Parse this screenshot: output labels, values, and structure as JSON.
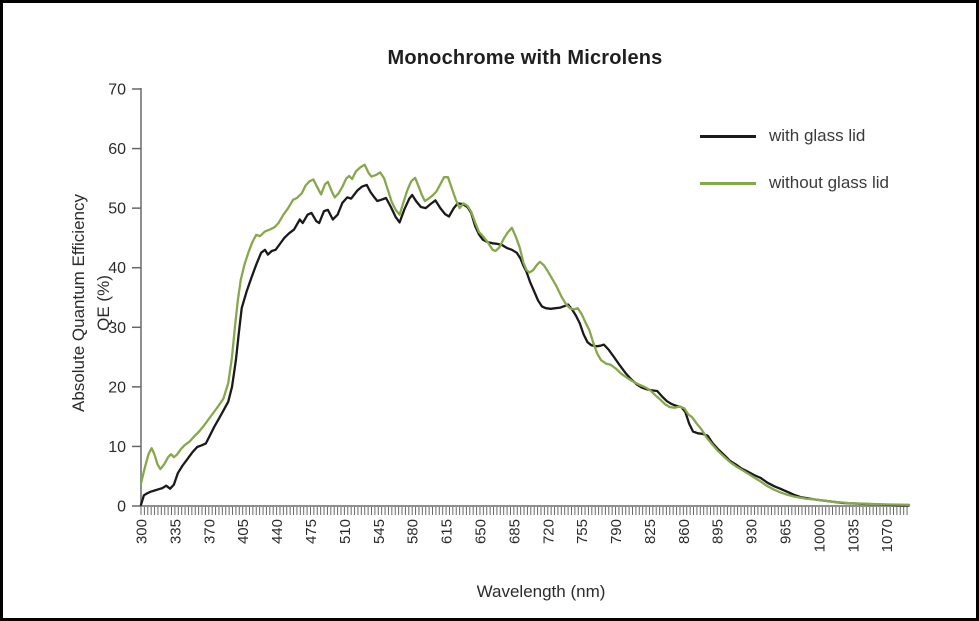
{
  "chart_data": {
    "type": "line",
    "title": "Monochrome with Microlens",
    "xlabel": "Wavelength (nm)",
    "ylabel_line1": "Absolute Quantum Efficiency",
    "ylabel_line2": "QE (%)",
    "xlim": [
      300,
      1093
    ],
    "ylim": [
      0,
      70
    ],
    "grid": false,
    "legend_position": "top-right",
    "axis_color": "#8f8f8f",
    "tick_color": "#666666",
    "x_ticks": [
      300,
      335,
      370,
      405,
      440,
      475,
      510,
      545,
      580,
      615,
      650,
      685,
      720,
      755,
      790,
      825,
      860,
      895,
      930,
      965,
      1000,
      1035,
      1070
    ],
    "y_ticks": [
      0,
      10,
      20,
      30,
      40,
      50,
      60,
      70
    ],
    "series": [
      {
        "name": "with glass lid",
        "color": "#1a1a1a",
        "points": [
          [
            300,
            0.2
          ],
          [
            303,
            1.8
          ],
          [
            306,
            2.1
          ],
          [
            310,
            2.4
          ],
          [
            314,
            2.6
          ],
          [
            318,
            2.8
          ],
          [
            322,
            3.0
          ],
          [
            326,
            3.4
          ],
          [
            330,
            2.9
          ],
          [
            334,
            3.6
          ],
          [
            338,
            5.5
          ],
          [
            343,
            6.8
          ],
          [
            348,
            7.9
          ],
          [
            353,
            9.0
          ],
          [
            358,
            9.9
          ],
          [
            363,
            10.2
          ],
          [
            367,
            10.5
          ],
          [
            371,
            11.8
          ],
          [
            376,
            13.4
          ],
          [
            381,
            14.8
          ],
          [
            386,
            16.3
          ],
          [
            390,
            17.5
          ],
          [
            394,
            20.0
          ],
          [
            398,
            24.5
          ],
          [
            401,
            29.0
          ],
          [
            404,
            33.2
          ],
          [
            409,
            36.0
          ],
          [
            414,
            38.3
          ],
          [
            419,
            40.5
          ],
          [
            424,
            42.5
          ],
          [
            428,
            43.0
          ],
          [
            431,
            42.2
          ],
          [
            435,
            42.8
          ],
          [
            439,
            43.0
          ],
          [
            443,
            43.9
          ],
          [
            448,
            45.0
          ],
          [
            453,
            45.8
          ],
          [
            458,
            46.4
          ],
          [
            464,
            48.1
          ],
          [
            467,
            47.5
          ],
          [
            472,
            48.9
          ],
          [
            476,
            49.2
          ],
          [
            481,
            47.8
          ],
          [
            484,
            47.5
          ],
          [
            489,
            49.5
          ],
          [
            493,
            49.7
          ],
          [
            498,
            48.1
          ],
          [
            503,
            48.9
          ],
          [
            508,
            50.9
          ],
          [
            513,
            51.8
          ],
          [
            517,
            51.6
          ],
          [
            523,
            52.9
          ],
          [
            528,
            53.6
          ],
          [
            533,
            53.9
          ],
          [
            537,
            52.7
          ],
          [
            541,
            51.8
          ],
          [
            544,
            51.2
          ],
          [
            548,
            51.4
          ],
          [
            553,
            51.7
          ],
          [
            558,
            50.2
          ],
          [
            563,
            48.5
          ],
          [
            567,
            47.6
          ],
          [
            572,
            49.8
          ],
          [
            577,
            51.6
          ],
          [
            580,
            52.2
          ],
          [
            584,
            51.2
          ],
          [
            589,
            50.2
          ],
          [
            594,
            50.0
          ],
          [
            599,
            50.7
          ],
          [
            604,
            51.3
          ],
          [
            609,
            50.0
          ],
          [
            614,
            49.0
          ],
          [
            618,
            48.6
          ],
          [
            623,
            50.0
          ],
          [
            627,
            50.8
          ],
          [
            632,
            50.7
          ],
          [
            637,
            50.2
          ],
          [
            641,
            49.2
          ],
          [
            645,
            47.0
          ],
          [
            649,
            45.6
          ],
          [
            653,
            44.7
          ],
          [
            658,
            44.3
          ],
          [
            663,
            44.1
          ],
          [
            668,
            44.0
          ],
          [
            673,
            43.8
          ],
          [
            678,
            43.3
          ],
          [
            683,
            43.0
          ],
          [
            688,
            42.5
          ],
          [
            692,
            41.5
          ],
          [
            695,
            40.3
          ],
          [
            698,
            39.3
          ],
          [
            702,
            37.5
          ],
          [
            706,
            36.0
          ],
          [
            710,
            34.5
          ],
          [
            714,
            33.5
          ],
          [
            718,
            33.2
          ],
          [
            723,
            33.1
          ],
          [
            728,
            33.2
          ],
          [
            733,
            33.3
          ],
          [
            738,
            33.6
          ],
          [
            741,
            33.8
          ],
          [
            745,
            33.0
          ],
          [
            749,
            32.0
          ],
          [
            753,
            30.7
          ],
          [
            757,
            28.8
          ],
          [
            761,
            27.5
          ],
          [
            765,
            27.0
          ],
          [
            770,
            26.8
          ],
          [
            774,
            26.9
          ],
          [
            778,
            27.1
          ],
          [
            783,
            26.2
          ],
          [
            788,
            25.1
          ],
          [
            794,
            23.7
          ],
          [
            800,
            22.4
          ],
          [
            806,
            21.3
          ],
          [
            812,
            20.4
          ],
          [
            817,
            19.9
          ],
          [
            822,
            19.6
          ],
          [
            828,
            19.4
          ],
          [
            833,
            19.3
          ],
          [
            838,
            18.4
          ],
          [
            843,
            17.6
          ],
          [
            848,
            17.1
          ],
          [
            853,
            16.8
          ],
          [
            858,
            16.6
          ],
          [
            862,
            15.8
          ],
          [
            866,
            13.8
          ],
          [
            870,
            12.5
          ],
          [
            875,
            12.2
          ],
          [
            880,
            12.1
          ],
          [
            885,
            11.8
          ],
          [
            890,
            10.6
          ],
          [
            896,
            9.5
          ],
          [
            902,
            8.6
          ],
          [
            908,
            7.6
          ],
          [
            914,
            7.0
          ],
          [
            920,
            6.3
          ],
          [
            926,
            5.8
          ],
          [
            933,
            5.2
          ],
          [
            940,
            4.7
          ],
          [
            947,
            3.9
          ],
          [
            954,
            3.3
          ],
          [
            960,
            2.9
          ],
          [
            967,
            2.4
          ],
          [
            974,
            1.9
          ],
          [
            981,
            1.5
          ],
          [
            988,
            1.3
          ],
          [
            995,
            1.1
          ],
          [
            1005,
            0.9
          ],
          [
            1015,
            0.7
          ],
          [
            1025,
            0.5
          ],
          [
            1040,
            0.4
          ],
          [
            1055,
            0.3
          ],
          [
            1070,
            0.2
          ],
          [
            1085,
            0.1
          ],
          [
            1093,
            0.1
          ]
        ]
      },
      {
        "name": "without glass lid",
        "color": "#87a84a",
        "points": [
          [
            300,
            3.8
          ],
          [
            304,
            6.5
          ],
          [
            308,
            8.8
          ],
          [
            311,
            9.7
          ],
          [
            314,
            8.6
          ],
          [
            317,
            7.0
          ],
          [
            320,
            6.2
          ],
          [
            324,
            7.0
          ],
          [
            328,
            8.2
          ],
          [
            331,
            8.7
          ],
          [
            334,
            8.2
          ],
          [
            337,
            8.6
          ],
          [
            341,
            9.5
          ],
          [
            345,
            10.2
          ],
          [
            350,
            10.8
          ],
          [
            355,
            11.7
          ],
          [
            360,
            12.5
          ],
          [
            365,
            13.5
          ],
          [
            370,
            14.6
          ],
          [
            375,
            15.7
          ],
          [
            380,
            16.8
          ],
          [
            385,
            18.0
          ],
          [
            390,
            20.6
          ],
          [
            394,
            25.0
          ],
          [
            397,
            30.0
          ],
          [
            400,
            34.5
          ],
          [
            403,
            38.0
          ],
          [
            407,
            40.6
          ],
          [
            411,
            42.6
          ],
          [
            415,
            44.3
          ],
          [
            419,
            45.5
          ],
          [
            423,
            45.3
          ],
          [
            428,
            46.1
          ],
          [
            433,
            46.4
          ],
          [
            438,
            46.8
          ],
          [
            442,
            47.5
          ],
          [
            447,
            48.9
          ],
          [
            452,
            50.0
          ],
          [
            457,
            51.4
          ],
          [
            461,
            51.7
          ],
          [
            466,
            52.5
          ],
          [
            470,
            53.8
          ],
          [
            474,
            54.5
          ],
          [
            478,
            54.8
          ],
          [
            482,
            53.5
          ],
          [
            486,
            52.3
          ],
          [
            490,
            54.0
          ],
          [
            493,
            54.4
          ],
          [
            497,
            52.8
          ],
          [
            500,
            51.8
          ],
          [
            504,
            52.5
          ],
          [
            508,
            53.6
          ],
          [
            512,
            55.0
          ],
          [
            515,
            55.4
          ],
          [
            518,
            54.9
          ],
          [
            522,
            56.2
          ],
          [
            527,
            56.9
          ],
          [
            531,
            57.3
          ],
          [
            535,
            55.9
          ],
          [
            538,
            55.3
          ],
          [
            543,
            55.6
          ],
          [
            547,
            56.0
          ],
          [
            551,
            55.0
          ],
          [
            555,
            53.0
          ],
          [
            559,
            51.0
          ],
          [
            563,
            49.7
          ],
          [
            567,
            48.9
          ],
          [
            571,
            51.0
          ],
          [
            575,
            53.0
          ],
          [
            579,
            54.5
          ],
          [
            583,
            55.1
          ],
          [
            587,
            53.5
          ],
          [
            590,
            52.2
          ],
          [
            593,
            51.2
          ],
          [
            597,
            51.6
          ],
          [
            601,
            52.1
          ],
          [
            605,
            52.8
          ],
          [
            609,
            54.0
          ],
          [
            613,
            55.2
          ],
          [
            617,
            55.2
          ],
          [
            621,
            53.3
          ],
          [
            625,
            51.4
          ],
          [
            629,
            50.0
          ],
          [
            633,
            50.8
          ],
          [
            637,
            50.4
          ],
          [
            641,
            49.4
          ],
          [
            645,
            47.6
          ],
          [
            649,
            46.0
          ],
          [
            653,
            45.3
          ],
          [
            658,
            44.3
          ],
          [
            663,
            43.0
          ],
          [
            666,
            42.8
          ],
          [
            670,
            43.4
          ],
          [
            675,
            45.0
          ],
          [
            679,
            46.0
          ],
          [
            683,
            46.7
          ],
          [
            687,
            45.2
          ],
          [
            691,
            43.4
          ],
          [
            695,
            40.8
          ],
          [
            698,
            39.6
          ],
          [
            701,
            39.2
          ],
          [
            705,
            39.6
          ],
          [
            709,
            40.5
          ],
          [
            712,
            41.0
          ],
          [
            716,
            40.4
          ],
          [
            720,
            39.4
          ],
          [
            725,
            38.0
          ],
          [
            729,
            36.9
          ],
          [
            734,
            35.2
          ],
          [
            739,
            33.8
          ],
          [
            743,
            33.2
          ],
          [
            747,
            33.0
          ],
          [
            751,
            33.2
          ],
          [
            755,
            32.2
          ],
          [
            759,
            30.8
          ],
          [
            763,
            29.5
          ],
          [
            767,
            27.4
          ],
          [
            771,
            25.6
          ],
          [
            775,
            24.5
          ],
          [
            780,
            23.9
          ],
          [
            785,
            23.7
          ],
          [
            790,
            23.1
          ],
          [
            796,
            22.2
          ],
          [
            802,
            21.5
          ],
          [
            808,
            20.9
          ],
          [
            814,
            20.4
          ],
          [
            820,
            20.0
          ],
          [
            826,
            19.4
          ],
          [
            831,
            18.6
          ],
          [
            836,
            17.9
          ],
          [
            841,
            17.1
          ],
          [
            846,
            16.6
          ],
          [
            851,
            16.5
          ],
          [
            856,
            16.7
          ],
          [
            861,
            16.4
          ],
          [
            865,
            15.4
          ],
          [
            869,
            14.9
          ],
          [
            874,
            13.8
          ],
          [
            879,
            12.8
          ],
          [
            884,
            11.5
          ],
          [
            890,
            10.3
          ],
          [
            896,
            9.2
          ],
          [
            902,
            8.3
          ],
          [
            908,
            7.4
          ],
          [
            914,
            6.7
          ],
          [
            920,
            6.1
          ],
          [
            926,
            5.5
          ],
          [
            933,
            4.8
          ],
          [
            940,
            4.1
          ],
          [
            946,
            3.4
          ],
          [
            953,
            2.8
          ],
          [
            960,
            2.3
          ],
          [
            967,
            1.9
          ],
          [
            974,
            1.6
          ],
          [
            981,
            1.4
          ],
          [
            988,
            1.2
          ],
          [
            995,
            1.1
          ],
          [
            1005,
            0.9
          ],
          [
            1015,
            0.7
          ],
          [
            1030,
            0.5
          ],
          [
            1045,
            0.4
          ],
          [
            1060,
            0.3
          ],
          [
            1075,
            0.25
          ],
          [
            1093,
            0.2
          ]
        ]
      }
    ]
  }
}
